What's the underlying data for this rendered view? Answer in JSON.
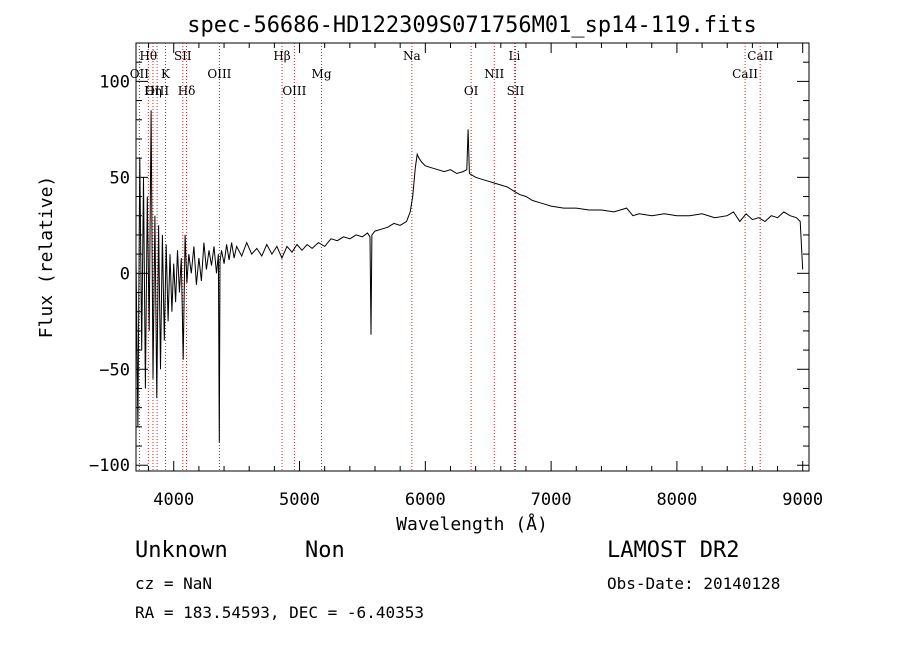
{
  "chart_data": {
    "type": "line",
    "title": "spec-56686-HD122309S071756M01_sp14-119.fits",
    "xlabel": "Wavelength (Å)",
    "ylabel": "Flux (relative)",
    "xlim": [
      3700,
      9050
    ],
    "ylim": [
      -103,
      120
    ],
    "xticks": [
      4000,
      5000,
      6000,
      7000,
      8000,
      9000
    ],
    "yticks": [
      -100,
      -50,
      0,
      50,
      100
    ],
    "ytick_labels": [
      "−100",
      "−50",
      "0",
      "50",
      "100"
    ],
    "line_color": "#000000",
    "marker_color": "#cc2222",
    "series": [
      {
        "points": [
          [
            3700,
            10
          ],
          [
            3715,
            -80
          ],
          [
            3730,
            60
          ],
          [
            3745,
            -40
          ],
          [
            3760,
            50
          ],
          [
            3775,
            -60
          ],
          [
            3790,
            40
          ],
          [
            3805,
            -30
          ],
          [
            3820,
            85
          ],
          [
            3835,
            -55
          ],
          [
            3850,
            30
          ],
          [
            3865,
            -65
          ],
          [
            3880,
            25
          ],
          [
            3895,
            -50
          ],
          [
            3910,
            20
          ],
          [
            3925,
            -35
          ],
          [
            3940,
            15
          ],
          [
            3955,
            -25
          ],
          [
            3970,
            10
          ],
          [
            3985,
            -20
          ],
          [
            4000,
            5
          ],
          [
            4015,
            -15
          ],
          [
            4030,
            12
          ],
          [
            4045,
            -10
          ],
          [
            4060,
            8
          ],
          [
            4075,
            -45
          ],
          [
            4090,
            20
          ],
          [
            4105,
            -5
          ],
          [
            4120,
            10
          ],
          [
            4140,
            0
          ],
          [
            4160,
            14
          ],
          [
            4180,
            -6
          ],
          [
            4200,
            8
          ],
          [
            4220,
            -4
          ],
          [
            4240,
            16
          ],
          [
            4260,
            2
          ],
          [
            4280,
            12
          ],
          [
            4300,
            4
          ],
          [
            4320,
            14
          ],
          [
            4340,
            0
          ],
          [
            4355,
            10
          ],
          [
            4362,
            -88
          ],
          [
            4368,
            6
          ],
          [
            4380,
            12
          ],
          [
            4400,
            5
          ],
          [
            4420,
            15
          ],
          [
            4440,
            7
          ],
          [
            4460,
            16
          ],
          [
            4480,
            8
          ],
          [
            4500,
            14
          ],
          [
            4540,
            9
          ],
          [
            4580,
            16
          ],
          [
            4620,
            10
          ],
          [
            4660,
            13
          ],
          [
            4700,
            9
          ],
          [
            4740,
            15
          ],
          [
            4780,
            10
          ],
          [
            4820,
            14
          ],
          [
            4860,
            8
          ],
          [
            4900,
            14
          ],
          [
            4940,
            11
          ],
          [
            4980,
            15
          ],
          [
            5020,
            12
          ],
          [
            5060,
            15
          ],
          [
            5100,
            13
          ],
          [
            5150,
            16
          ],
          [
            5200,
            14
          ],
          [
            5250,
            18
          ],
          [
            5300,
            17
          ],
          [
            5350,
            19
          ],
          [
            5400,
            18
          ],
          [
            5450,
            20
          ],
          [
            5500,
            19
          ],
          [
            5540,
            21
          ],
          [
            5560,
            19
          ],
          [
            5568,
            -32
          ],
          [
            5575,
            20
          ],
          [
            5600,
            22
          ],
          [
            5650,
            23
          ],
          [
            5700,
            24
          ],
          [
            5750,
            26
          ],
          [
            5800,
            25
          ],
          [
            5850,
            27
          ],
          [
            5880,
            32
          ],
          [
            5900,
            40
          ],
          [
            5920,
            55
          ],
          [
            5935,
            62
          ],
          [
            5950,
            60
          ],
          [
            5970,
            58
          ],
          [
            6000,
            56
          ],
          [
            6050,
            55
          ],
          [
            6100,
            54
          ],
          [
            6150,
            53
          ],
          [
            6200,
            54
          ],
          [
            6250,
            52
          ],
          [
            6300,
            53
          ],
          [
            6330,
            54
          ],
          [
            6340,
            75
          ],
          [
            6350,
            52
          ],
          [
            6400,
            50
          ],
          [
            6450,
            49
          ],
          [
            6500,
            48
          ],
          [
            6550,
            47
          ],
          [
            6600,
            46
          ],
          [
            6650,
            45
          ],
          [
            6700,
            43
          ],
          [
            6750,
            41
          ],
          [
            6800,
            40
          ],
          [
            6850,
            38
          ],
          [
            6900,
            37
          ],
          [
            6950,
            36
          ],
          [
            7000,
            35
          ],
          [
            7100,
            34
          ],
          [
            7200,
            34
          ],
          [
            7300,
            33
          ],
          [
            7400,
            33
          ],
          [
            7500,
            32
          ],
          [
            7600,
            34
          ],
          [
            7650,
            30
          ],
          [
            7700,
            31
          ],
          [
            7800,
            30
          ],
          [
            7900,
            31
          ],
          [
            8000,
            30
          ],
          [
            8100,
            30
          ],
          [
            8200,
            31
          ],
          [
            8300,
            29
          ],
          [
            8400,
            30
          ],
          [
            8450,
            32
          ],
          [
            8500,
            27
          ],
          [
            8550,
            31
          ],
          [
            8600,
            28
          ],
          [
            8650,
            29
          ],
          [
            8700,
            27
          ],
          [
            8750,
            30
          ],
          [
            8800,
            29
          ],
          [
            8850,
            32
          ],
          [
            8900,
            30
          ],
          [
            8950,
            29
          ],
          [
            8980,
            27
          ],
          [
            8995,
            8
          ],
          [
            9000,
            2
          ]
        ]
      }
    ],
    "line_markers": [
      {
        "label": "Hθ",
        "x": 3798,
        "row": 0
      },
      {
        "label": "OII",
        "x": 3727,
        "row": 1
      },
      {
        "label": "K",
        "x": 3934,
        "row": 1
      },
      {
        "label": "OIII",
        "x": 3868,
        "row": 2
      },
      {
        "label": "Hη",
        "x": 3835,
        "row": 2
      },
      {
        "label": "SII",
        "x": 4072,
        "row": 0
      },
      {
        "label": "Hδ",
        "x": 4102,
        "row": 2
      },
      {
        "label": "OIII",
        "x": 4363,
        "row": 1
      },
      {
        "label": "Hβ",
        "x": 4861,
        "row": 0
      },
      {
        "label": "OIII",
        "x": 4959,
        "row": 2
      },
      {
        "label": "Mg",
        "x": 5175,
        "row": 1
      },
      {
        "label": "Na",
        "x": 5893,
        "row": 0
      },
      {
        "label": "OI",
        "x": 6364,
        "row": 2
      },
      {
        "label": "NII",
        "x": 6548,
        "row": 1
      },
      {
        "label": "Li",
        "x": 6708,
        "row": 0
      },
      {
        "label": "SII",
        "x": 6717,
        "row": 2
      },
      {
        "label": "CaII",
        "x": 8542,
        "row": 1
      },
      {
        "label": "CaII",
        "x": 8662,
        "row": 0
      }
    ]
  },
  "info": {
    "class": "Unknown",
    "subclass": "Non",
    "cz": "cz = NaN",
    "coords": "RA = 183.54593, DEC =  -6.40353",
    "survey": "LAMOST DR2",
    "obs_date": "Obs-Date: 20140128"
  }
}
